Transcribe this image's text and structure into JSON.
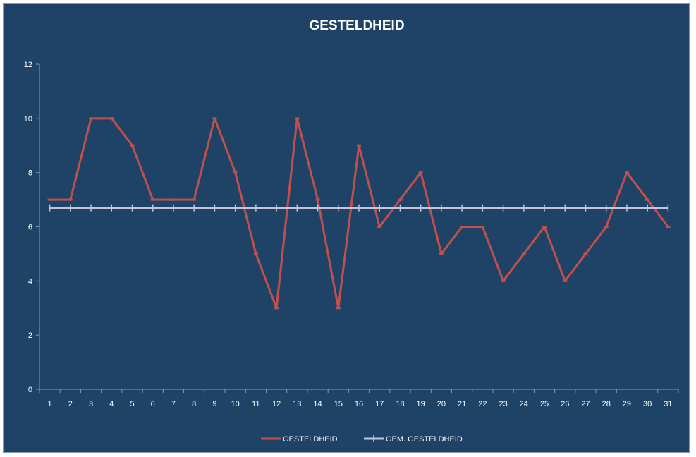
{
  "chart_data": {
    "type": "line",
    "title": "GESTELDHEID",
    "xlabel": "",
    "ylabel": "",
    "x": [
      1,
      2,
      3,
      4,
      5,
      6,
      7,
      8,
      9,
      10,
      11,
      12,
      13,
      14,
      15,
      16,
      17,
      18,
      19,
      20,
      21,
      22,
      23,
      24,
      25,
      26,
      27,
      28,
      29,
      30,
      31
    ],
    "ylim": [
      0,
      12
    ],
    "yticks": [
      0,
      2,
      4,
      6,
      8,
      10,
      12
    ],
    "grid": false,
    "legend_position": "bottom",
    "series": [
      {
        "name": "GESTELDHEID",
        "color": "#c0504d",
        "values": [
          7,
          7,
          10,
          10,
          9,
          7,
          7,
          7,
          10,
          8,
          5,
          3,
          10,
          7,
          3,
          9,
          6,
          7,
          8,
          5,
          6,
          6,
          4,
          5,
          6,
          4,
          5,
          6,
          8,
          7,
          6
        ]
      },
      {
        "name": "GEM. GESTELDHEID",
        "color": "#c6c2dc",
        "values": [
          6.7,
          6.7,
          6.7,
          6.7,
          6.7,
          6.7,
          6.7,
          6.7,
          6.7,
          6.7,
          6.7,
          6.7,
          6.7,
          6.7,
          6.7,
          6.7,
          6.7,
          6.7,
          6.7,
          6.7,
          6.7,
          6.7,
          6.7,
          6.7,
          6.7,
          6.7,
          6.7,
          6.7,
          6.7,
          6.7,
          6.7
        ]
      }
    ],
    "colors": {
      "background": "#1f4366",
      "axis": "#8a9aaa",
      "text": "#ffffff"
    }
  }
}
